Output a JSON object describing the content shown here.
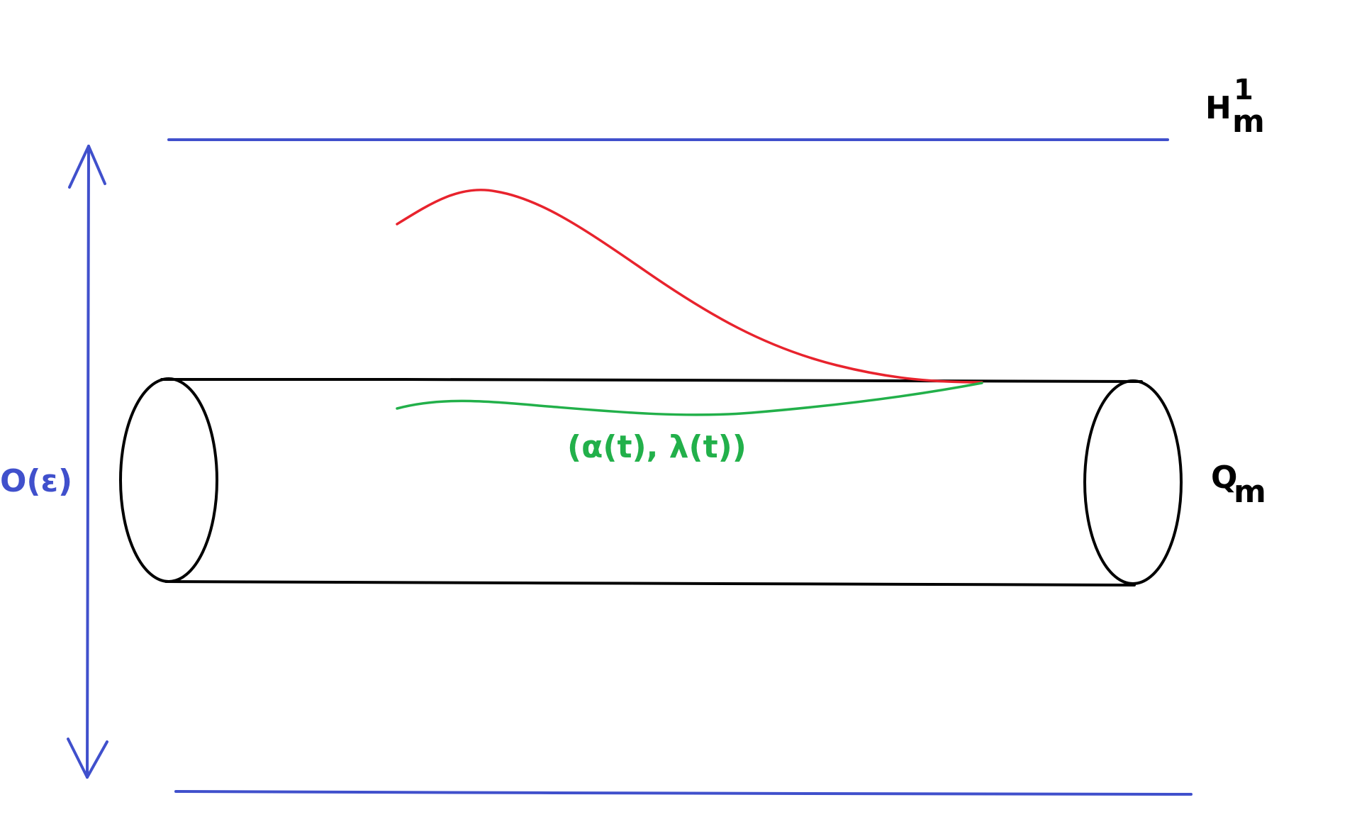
{
  "labels": {
    "space_main": "H",
    "space_super": "1",
    "space_sub": "m",
    "tube_main": "Q",
    "tube_sub": "m",
    "curve": "(α(t), λ(t))",
    "width": "O(ε)"
  },
  "colors": {
    "blue": "#4050cc",
    "black": "#000000",
    "red": "#e8232d",
    "green": "#22b04a"
  }
}
